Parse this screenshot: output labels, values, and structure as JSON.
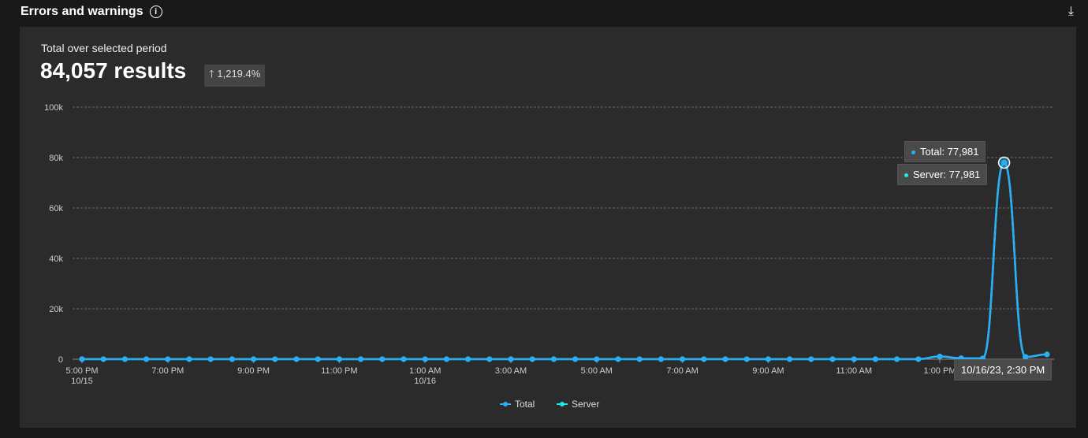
{
  "header": {
    "title": "Errors and warnings",
    "info_icon": "info-icon",
    "download_icon": "download-icon"
  },
  "summary": {
    "label": "Total over selected period",
    "value": "84,057 results",
    "change": "1,219.4%",
    "change_icon": "arrow-up-icon"
  },
  "tooltip": {
    "total": "Total: 77,981",
    "server": "Server: 77,981",
    "time": "10/16/23, 2:30 PM"
  },
  "chart_data": {
    "type": "line",
    "ylim": [
      0,
      100000
    ],
    "yticks": [
      "0",
      "20k",
      "40k",
      "60k",
      "80k",
      "100k"
    ],
    "xticks": [
      [
        "5:00 PM",
        "10/15"
      ],
      [
        "7:00 PM",
        ""
      ],
      [
        "9:00 PM",
        ""
      ],
      [
        "11:00 PM",
        ""
      ],
      [
        "1:00 AM",
        "10/16"
      ],
      [
        "3:00 AM",
        ""
      ],
      [
        "5:00 AM",
        ""
      ],
      [
        "7:00 AM",
        ""
      ],
      [
        "9:00 AM",
        ""
      ],
      [
        "11:00 AM",
        ""
      ],
      [
        "1:00 PM",
        ""
      ]
    ],
    "grid": true,
    "legend": "bottom",
    "series": [
      {
        "name": "Total",
        "color": "#2aaef5",
        "values": [
          30,
          30,
          30,
          30,
          30,
          30,
          30,
          30,
          30,
          30,
          30,
          30,
          30,
          30,
          30,
          30,
          30,
          30,
          30,
          30,
          30,
          30,
          30,
          30,
          30,
          30,
          30,
          30,
          30,
          30,
          30,
          30,
          30,
          30,
          30,
          30,
          30,
          30,
          30,
          40,
          1100,
          400,
          300,
          77981,
          900,
          1900
        ]
      },
      {
        "name": "Server",
        "color": "#1de9e6",
        "values": [
          30,
          30,
          30,
          30,
          30,
          30,
          30,
          30,
          30,
          30,
          30,
          30,
          30,
          30,
          30,
          30,
          30,
          30,
          30,
          30,
          30,
          30,
          30,
          30,
          30,
          30,
          30,
          30,
          30,
          30,
          30,
          30,
          30,
          30,
          30,
          30,
          30,
          30,
          30,
          40,
          1100,
          400,
          300,
          77981,
          900,
          1900
        ]
      }
    ]
  }
}
